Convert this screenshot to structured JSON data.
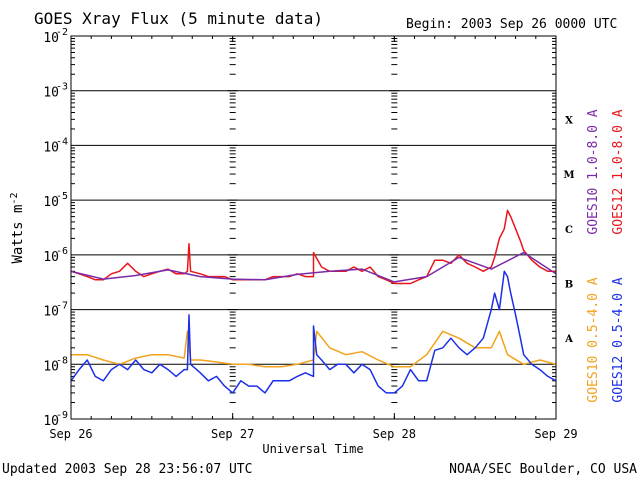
{
  "title": "GOES Xray Flux (5 minute data)",
  "begin": "Begin:  2003 Sep 26 0000 UTC",
  "updated": "Updated 2003 Sep 28 23:56:07 UTC",
  "credit": "NOAA/SEC Boulder, CO USA",
  "ylabel_main": "Watts m",
  "ylabel_sup": "-2",
  "xlabel": "Universal Time",
  "colors": {
    "goes10_long": "#7a2aa8",
    "goes12_long": "#e8161b",
    "goes10_short": "#f3a21b",
    "goes12_short": "#1b2fe8"
  },
  "chart_data": {
    "type": "line",
    "y_scale": "log",
    "ylim": [
      "1e-9",
      "1e-2"
    ],
    "y_ticks": [
      {
        "base": "10",
        "exp": "-9"
      },
      {
        "base": "10",
        "exp": "-8"
      },
      {
        "base": "10",
        "exp": "-7"
      },
      {
        "base": "10",
        "exp": "-6"
      },
      {
        "base": "10",
        "exp": "-5"
      },
      {
        "base": "10",
        "exp": "-4"
      },
      {
        "base": "10",
        "exp": "-3"
      },
      {
        "base": "10",
        "exp": "-2"
      }
    ],
    "x_ticks": [
      "Sep 26",
      "Sep 27",
      "Sep 28",
      "Sep 29"
    ],
    "xlim_days": [
      0,
      3
    ],
    "flare_classes": [
      {
        "label": "A",
        "flux": 3e-08
      },
      {
        "label": "B",
        "flux": 3e-07
      },
      {
        "label": "C",
        "flux": 3e-06
      },
      {
        "label": "M",
        "flux": 3e-05
      },
      {
        "label": "X",
        "flux": 0.0003
      }
    ],
    "legend_right_outer": [
      "GOES12 1.0-8.0 A",
      "GOES12 0.5-4.0 A"
    ],
    "legend_right_inner": [
      "GOES10 1.0-8.0 A",
      "GOES10 0.5-4.0 A"
    ],
    "series": [
      {
        "name": "GOES12 1.0-8.0 A",
        "x": [
          0.0,
          0.05,
          0.1,
          0.15,
          0.2,
          0.25,
          0.3,
          0.35,
          0.4,
          0.45,
          0.5,
          0.55,
          0.6,
          0.65,
          0.7,
          0.72,
          0.73,
          0.74,
          0.8,
          0.85,
          0.9,
          0.95,
          1.0,
          1.05,
          1.1,
          1.15,
          1.2,
          1.25,
          1.3,
          1.35,
          1.4,
          1.45,
          1.5,
          1.5,
          1.55,
          1.6,
          1.65,
          1.7,
          1.75,
          1.8,
          1.85,
          1.9,
          1.95,
          2.0,
          2.05,
          2.1,
          2.15,
          2.2,
          2.25,
          2.3,
          2.35,
          2.4,
          2.45,
          2.5,
          2.55,
          2.6,
          2.62,
          2.65,
          2.68,
          2.7,
          2.72,
          2.75,
          2.78,
          2.8,
          2.85,
          2.9,
          2.95,
          3.0
        ],
        "y": [
          5e-07,
          4.5e-07,
          4e-07,
          3.5e-07,
          3.5e-07,
          4.5e-07,
          5e-07,
          7e-07,
          5e-07,
          4e-07,
          4.5e-07,
          5e-07,
          5.5e-07,
          4.5e-07,
          4.5e-07,
          5e-07,
          1.6e-06,
          5e-07,
          4.5e-07,
          4e-07,
          4e-07,
          4e-07,
          3.5e-07,
          3.5e-07,
          3.5e-07,
          3.5e-07,
          3.5e-07,
          4e-07,
          4e-07,
          4e-07,
          4.5e-07,
          4e-07,
          4e-07,
          1.1e-06,
          6e-07,
          5e-07,
          5e-07,
          5e-07,
          6e-07,
          5e-07,
          6e-07,
          4e-07,
          3.5e-07,
          3e-07,
          3e-07,
          3e-07,
          3.5e-07,
          4e-07,
          8e-07,
          8e-07,
          7e-07,
          1e-06,
          7e-07,
          6e-07,
          5e-07,
          6e-07,
          9e-07,
          2e-06,
          3e-06,
          6.5e-06,
          5e-06,
          3e-06,
          1.8e-06,
          1.2e-06,
          8e-07,
          6e-07,
          5e-07,
          5e-07
        ]
      },
      {
        "name": "GOES10 1.0-8.0 A",
        "x": [
          0.0,
          0.2,
          0.4,
          0.6,
          0.8,
          1.0,
          1.2,
          1.4,
          1.6,
          1.8,
          2.0,
          2.2,
          2.4,
          2.6,
          2.8,
          3.0
        ],
        "y": [
          5e-07,
          3.6e-07,
          4.2e-07,
          5.3e-07,
          4e-07,
          3.6e-07,
          3.5e-07,
          4.4e-07,
          5e-07,
          5.5e-07,
          3.2e-07,
          4e-07,
          9e-07,
          5.5e-07,
          1.1e-06,
          4.5e-07
        ]
      },
      {
        "name": "GOES10 0.5-4.0 A",
        "x": [
          0.0,
          0.1,
          0.2,
          0.3,
          0.4,
          0.5,
          0.6,
          0.7,
          0.72,
          0.74,
          0.8,
          0.9,
          1.0,
          1.1,
          1.2,
          1.3,
          1.4,
          1.5,
          1.52,
          1.6,
          1.7,
          1.8,
          1.9,
          2.0,
          2.1,
          2.2,
          2.3,
          2.4,
          2.5,
          2.6,
          2.65,
          2.7,
          2.8,
          2.9,
          3.0
        ],
        "y": [
          1.5e-08,
          1.5e-08,
          1.2e-08,
          1e-08,
          1.3e-08,
          1.5e-08,
          1.5e-08,
          1.3e-08,
          4e-08,
          1.2e-08,
          1.2e-08,
          1.1e-08,
          1e-08,
          1e-08,
          9e-09,
          9e-09,
          1e-08,
          1.2e-08,
          4e-08,
          2e-08,
          1.5e-08,
          1.7e-08,
          1.2e-08,
          9e-09,
          9e-09,
          1.5e-08,
          4e-08,
          3e-08,
          2e-08,
          2e-08,
          4e-08,
          1.5e-08,
          1e-08,
          1.2e-08,
          1e-08
        ]
      },
      {
        "name": "GOES12 0.5-4.0 A",
        "x": [
          0.0,
          0.05,
          0.1,
          0.15,
          0.2,
          0.25,
          0.3,
          0.35,
          0.4,
          0.45,
          0.5,
          0.55,
          0.6,
          0.65,
          0.7,
          0.72,
          0.73,
          0.74,
          0.8,
          0.85,
          0.9,
          0.95,
          1.0,
          1.05,
          1.1,
          1.15,
          1.2,
          1.25,
          1.3,
          1.35,
          1.4,
          1.45,
          1.5,
          1.5,
          1.52,
          1.55,
          1.6,
          1.65,
          1.7,
          1.75,
          1.8,
          1.85,
          1.9,
          1.95,
          2.0,
          2.05,
          2.1,
          2.15,
          2.2,
          2.25,
          2.3,
          2.35,
          2.4,
          2.45,
          2.5,
          2.55,
          2.6,
          2.62,
          2.65,
          2.68,
          2.7,
          2.72,
          2.75,
          2.78,
          2.8,
          2.85,
          2.9,
          2.95,
          3.0
        ],
        "y": [
          5e-09,
          8e-09,
          1.2e-08,
          6e-09,
          5e-09,
          8e-09,
          1e-08,
          8e-09,
          1.2e-08,
          8e-09,
          7e-09,
          1e-08,
          8e-09,
          6e-09,
          8e-09,
          8e-09,
          8e-08,
          1e-08,
          7e-09,
          5e-09,
          6e-09,
          4e-09,
          3e-09,
          5e-09,
          4e-09,
          4e-09,
          3e-09,
          5e-09,
          5e-09,
          5e-09,
          6e-09,
          7e-09,
          6e-09,
          5e-08,
          1.5e-08,
          1.2e-08,
          8e-09,
          1e-08,
          1e-08,
          7e-09,
          1e-08,
          8e-09,
          4e-09,
          3e-09,
          3e-09,
          4e-09,
          8e-09,
          5e-09,
          5e-09,
          1.8e-08,
          2e-08,
          3e-08,
          2e-08,
          1.5e-08,
          2e-08,
          3e-08,
          1e-07,
          2e-07,
          1e-07,
          5e-07,
          4e-07,
          2e-07,
          8e-08,
          3e-08,
          1.5e-08,
          1e-08,
          8e-09,
          6e-09,
          5e-09
        ]
      }
    ]
  }
}
